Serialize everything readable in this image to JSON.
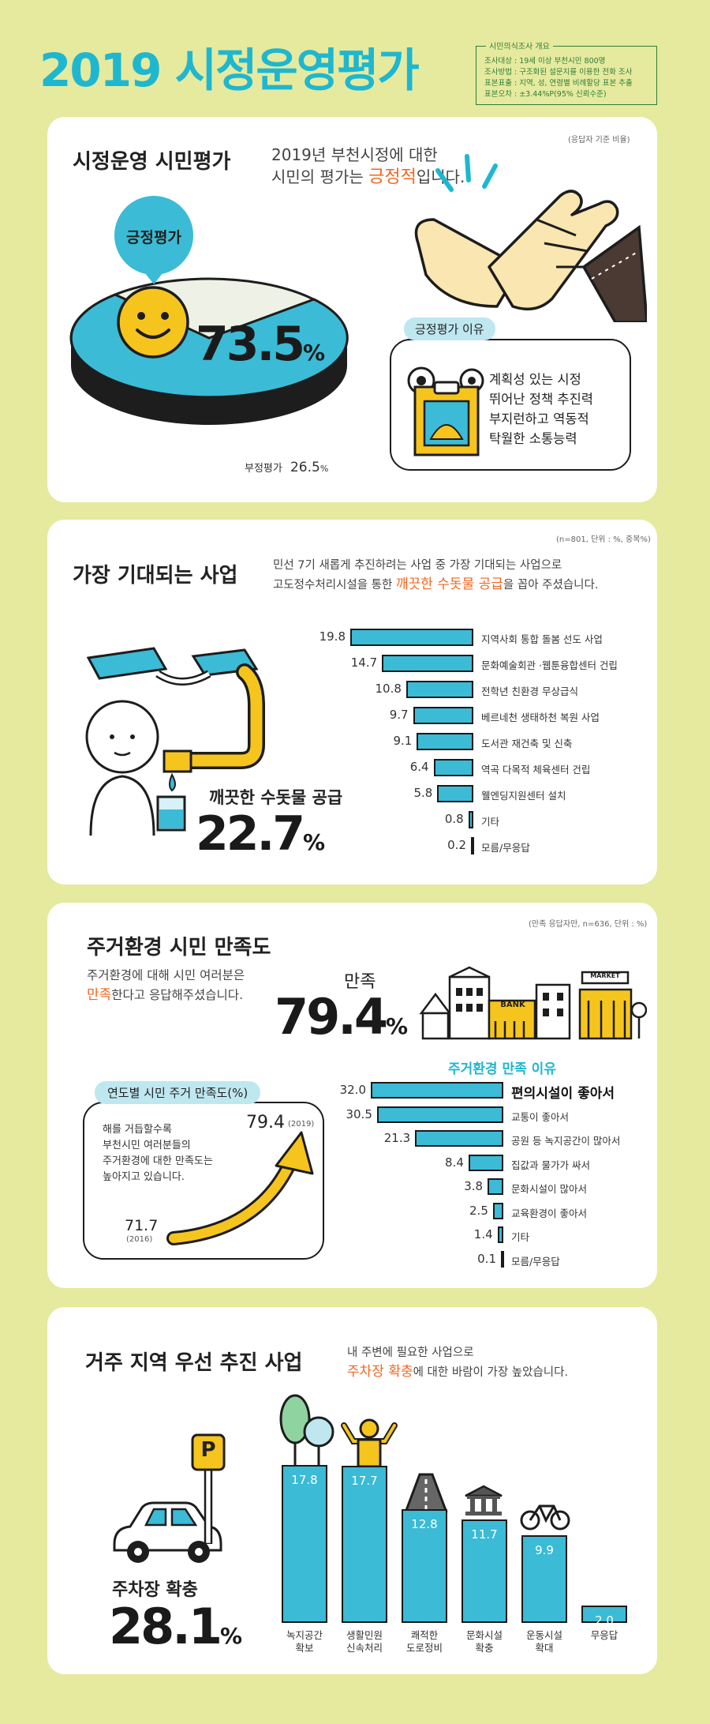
{
  "header": {
    "title": "2019 시정운영평가",
    "survey_box_title": "시민의식조사 개요",
    "survey_lines": [
      "조사대상 : 19세 이상 부천시민 800명",
      "조사방법 : 구조화된 설문지를 이용한 전화 조사",
      "표본표출 : 지역, 성, 연령별 비례할당 표본 추출",
      "표본오차 : ±3.44%P(95% 신뢰수준)"
    ]
  },
  "section1": {
    "title": "시정운영 시민평가",
    "subtitle_line1": "2019년 부천시정에 대한",
    "subtitle_line2_pre": "시민의 평가는 ",
    "subtitle_line2_hl": "긍정적",
    "subtitle_line2_post": "입니다.",
    "note": "(응답자 기준 비율)",
    "positive_label": "긍정평가",
    "positive_value": "73.5",
    "percent": "%",
    "negative_label": "부정평가",
    "negative_value": "26.5",
    "reasons_title": "긍정평가 이유",
    "reasons": [
      "계획성 있는 시정",
      "뛰어난 정책 추진력",
      "부지런하고 역동적",
      "탁월한 소통능력"
    ]
  },
  "section2": {
    "title": "가장 기대되는 사업",
    "desc_line1": "민선 7기 새롭게 추진하려는 사업 중 가장 기대되는 사업으로",
    "desc_line2_pre": "고도정수처리시설을 통한 ",
    "desc_line2_hl": "깨끗한 수돗물 공급",
    "desc_line2_post": "을 꼽아 주셨습니다.",
    "note": "(n=801, 단위 : %, 중복%)",
    "highlight_label": "깨끗한 수돗물 공급",
    "highlight_value": "22.7",
    "percent": "%",
    "chart_data": {
      "type": "bar",
      "orientation": "horizontal",
      "categories": [
        "지역사회 통합 돌봄 선도 사업",
        "문화예술회관 ·웹툰융합센터 건립",
        "전학년 친환경 무상급식",
        "베르네천 생태하천 복원 사업",
        "도서관 재건축 및 신축",
        "역곡 다목적 체육센터 건립",
        "웰엔딩지원센터 설치",
        "기타",
        "모름/무응답"
      ],
      "values": [
        19.8,
        14.7,
        10.8,
        9.7,
        9.1,
        6.4,
        5.8,
        0.8,
        0.2
      ],
      "labels": [
        "19.8",
        "14.7",
        "10.8",
        "9.7",
        "9.1",
        "6.4",
        "5.8",
        "0.8",
        "0.2"
      ]
    }
  },
  "section3": {
    "title": "주거환경 시민 만족도",
    "desc_line1": "주거환경에 대해 시민 여러분은",
    "desc_line2_hl": "만족",
    "desc_line2_post": "한다고 응답해주셨습니다.",
    "note": "(만족 응답자만, n=636, 단위 : %)",
    "satisfaction_label": "만족",
    "satisfaction_value": "79.4",
    "percent": "%",
    "sign_bank": "BANK",
    "sign_market": "MARKET",
    "yearly_title": "연도별 시민 주거 만족도(%)",
    "yearly_text": [
      "해를 거듭할수록",
      "부천시민 여러분들의",
      "주거환경에 대한 만족도는",
      "높아지고 있습니다."
    ],
    "year_start_value": "71.7",
    "year_start_label": "(2016)",
    "year_end_value": "79.4",
    "year_end_label": "(2019)",
    "reasons_title": "주거환경 만족 이유",
    "chart_data": {
      "type": "bar",
      "orientation": "horizontal",
      "categories": [
        "편의시설이 좋아서",
        "교통이 좋아서",
        "공원 등 녹지공간이 많아서",
        "집값과 물가가 싸서",
        "문화시설이 많아서",
        "교육환경이 좋아서",
        "기타",
        "모름/무응답"
      ],
      "values": [
        32.0,
        30.5,
        21.3,
        8.4,
        3.8,
        2.5,
        1.4,
        0.1
      ],
      "labels": [
        "32.0",
        "30.5",
        "21.3",
        "8.4",
        "3.8",
        "2.5",
        "1.4",
        "0.1"
      ]
    }
  },
  "section4": {
    "title": "거주 지역 우선 추진 사업",
    "desc_line1": "내 주변에 필요한 사업으로",
    "desc_line2_hl": "주차장 확충",
    "desc_line2_post": "에 대한 바람이 가장 높았습니다.",
    "highlight_label": "주차장 확충",
    "highlight_value": "28.1",
    "percent": "%",
    "parking_sign": "P",
    "chart_data": {
      "type": "bar",
      "orientation": "vertical",
      "categories": [
        "녹지공간 확보",
        "생활민원 신속처리",
        "쾌적한 도로정비",
        "문화시설 확충",
        "운동시설 확대",
        "무응답"
      ],
      "category_lines": [
        [
          "녹지공간",
          "확보"
        ],
        [
          "생활민원",
          "신속처리"
        ],
        [
          "쾌적한",
          "도로정비"
        ],
        [
          "문화시설",
          "확충"
        ],
        [
          "운동시설",
          "확대"
        ],
        [
          "무응답"
        ]
      ],
      "values": [
        17.8,
        17.7,
        12.8,
        11.7,
        9.9,
        2.0
      ],
      "labels": [
        "17.8",
        "17.7",
        "12.8",
        "11.7",
        "9.9",
        "2.0"
      ]
    }
  }
}
